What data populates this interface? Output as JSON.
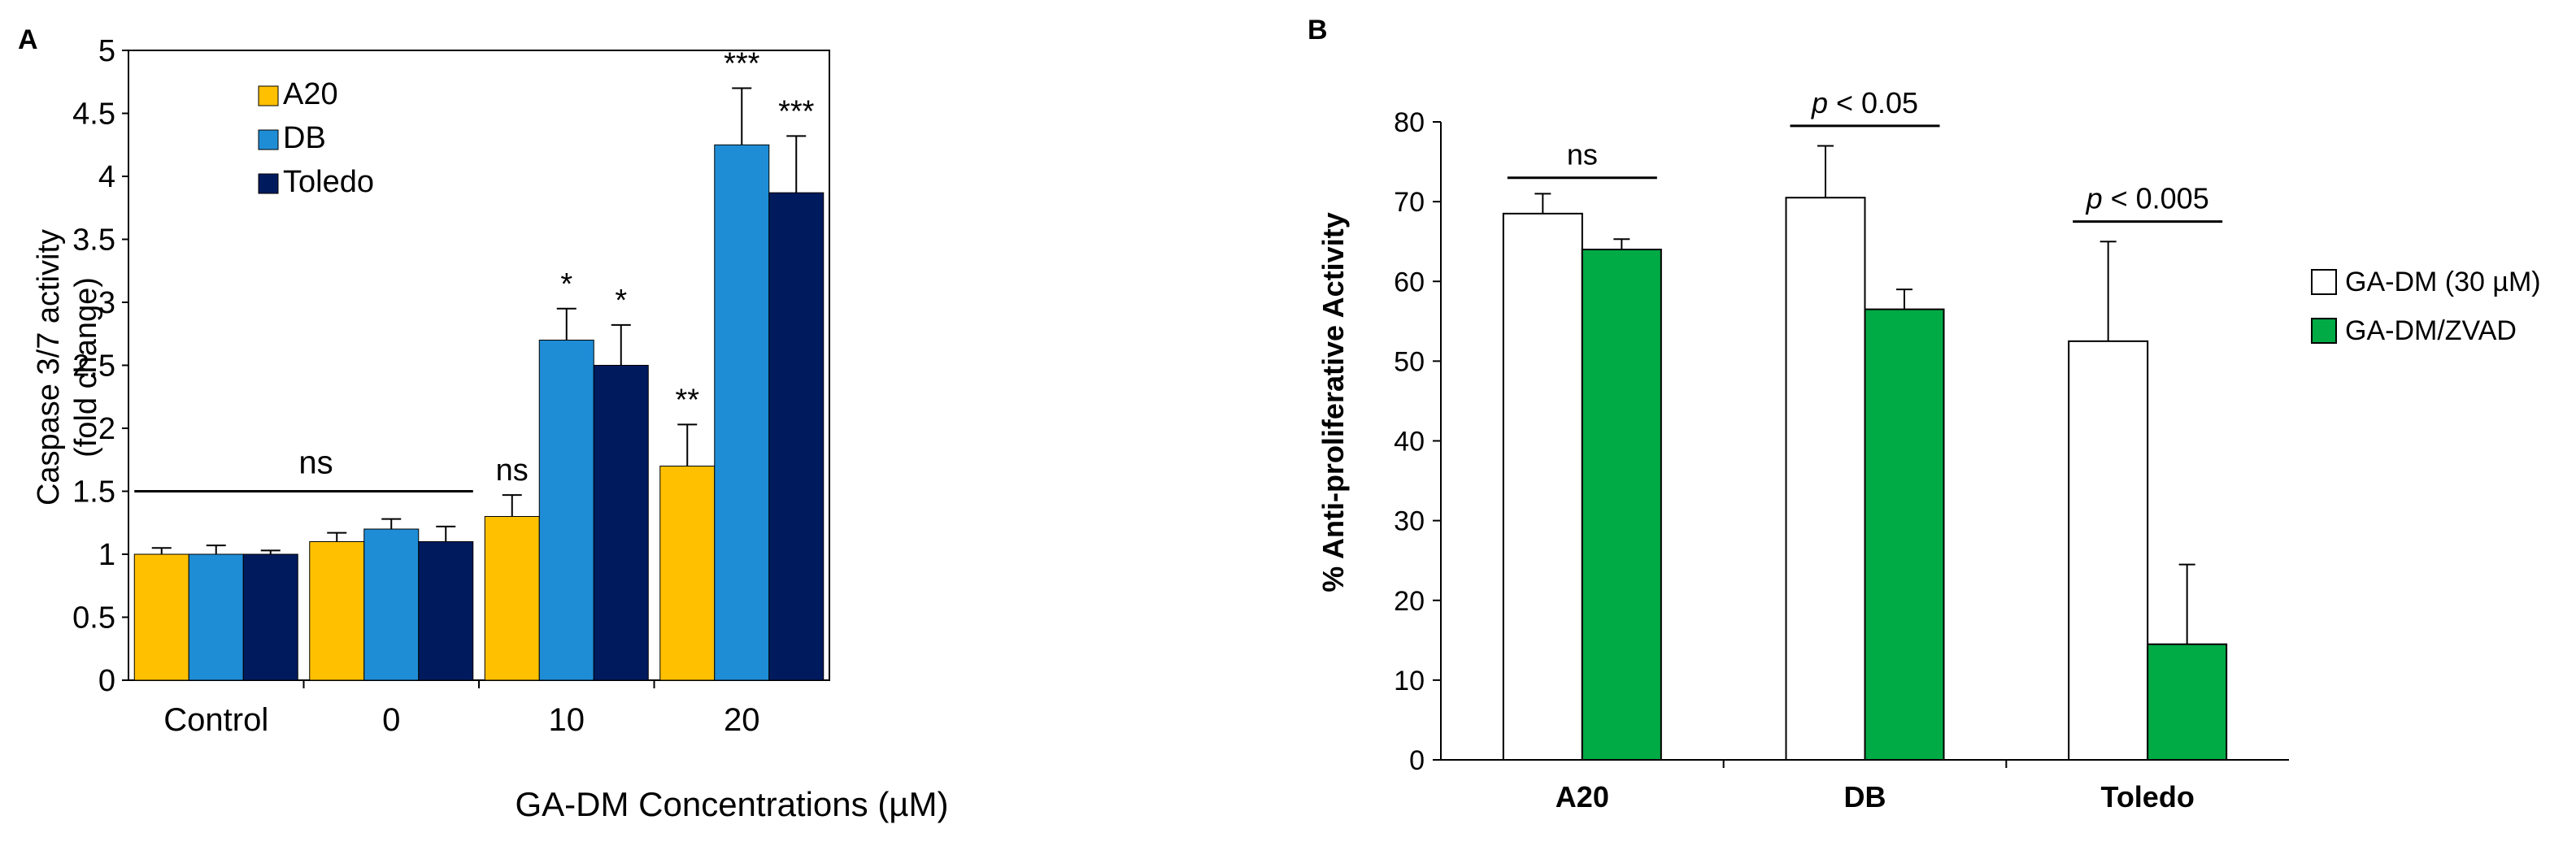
{
  "chart_data": [
    {
      "panel": "A",
      "type": "bar",
      "ylabel_line1": "Caspase 3/7 activity",
      "ylabel_line2": "(fold change)",
      "xlabel": "GA-DM Concentrations (µM)",
      "categories": [
        "Control",
        "0",
        "10",
        "20"
      ],
      "ylim": [
        0,
        5
      ],
      "yticks": [
        "0",
        "0.5",
        "1",
        "1.5",
        "2",
        "2.5",
        "3",
        "3.5",
        "4",
        "4.5",
        "5"
      ],
      "series": [
        {
          "name": "A20",
          "color": "#FFC000",
          "values": [
            1.0,
            1.1,
            1.3,
            1.7
          ],
          "errors": [
            0.05,
            0.07,
            0.17,
            0.33
          ]
        },
        {
          "name": "DB",
          "color": "#1F8DD6",
          "values": [
            1.0,
            1.2,
            2.7,
            4.25
          ],
          "errors": [
            0.07,
            0.08,
            0.25,
            0.45
          ]
        },
        {
          "name": "Toledo",
          "color": "#001A5E",
          "values": [
            1.0,
            1.1,
            2.5,
            3.87
          ],
          "errors": [
            0.03,
            0.12,
            0.32,
            0.45
          ]
        }
      ],
      "significance": [
        {
          "text": "ns",
          "group": 2,
          "series": 0
        },
        {
          "text": "**",
          "group": 3,
          "series": 0
        },
        {
          "text": "*",
          "group": 2,
          "series": 1
        },
        {
          "text": "*",
          "group": 2,
          "series": 2
        },
        {
          "text": "***",
          "group": 3,
          "series": 1
        },
        {
          "text": "***",
          "group": 3,
          "series": 2
        }
      ],
      "bracket": {
        "label": "ns",
        "from_group": 0,
        "to_group": 1,
        "y": 1.5
      },
      "legend_position": "top-left"
    },
    {
      "panel": "B",
      "type": "bar",
      "ylabel": "% Anti-proliferative Activity",
      "xlabel": "",
      "categories": [
        "A20",
        "DB",
        "Toledo"
      ],
      "ylim": [
        0,
        80
      ],
      "yticks": [
        "0",
        "10",
        "20",
        "30",
        "40",
        "50",
        "60",
        "70",
        "80"
      ],
      "series": [
        {
          "name": "GA-DM (30 µM)",
          "color": "#FFFFFF",
          "values": [
            68.5,
            70.5,
            52.5
          ],
          "errors": [
            2.5,
            6.5,
            12.5
          ]
        },
        {
          "name": "GA-DM/ZVAD",
          "color": "#00AA44",
          "values": [
            64.0,
            56.5,
            14.5
          ],
          "errors": [
            1.3,
            2.5,
            10.0
          ]
        }
      ],
      "brackets": [
        {
          "group": 0,
          "label": "ns",
          "y": 73
        },
        {
          "group": 1,
          "label": "p < 0.05",
          "y": 79.5
        },
        {
          "group": 2,
          "label": "p < 0.005",
          "y": 67.5
        }
      ],
      "legend_position": "right"
    }
  ],
  "panel_labels": {
    "a": "A",
    "b": "B"
  }
}
